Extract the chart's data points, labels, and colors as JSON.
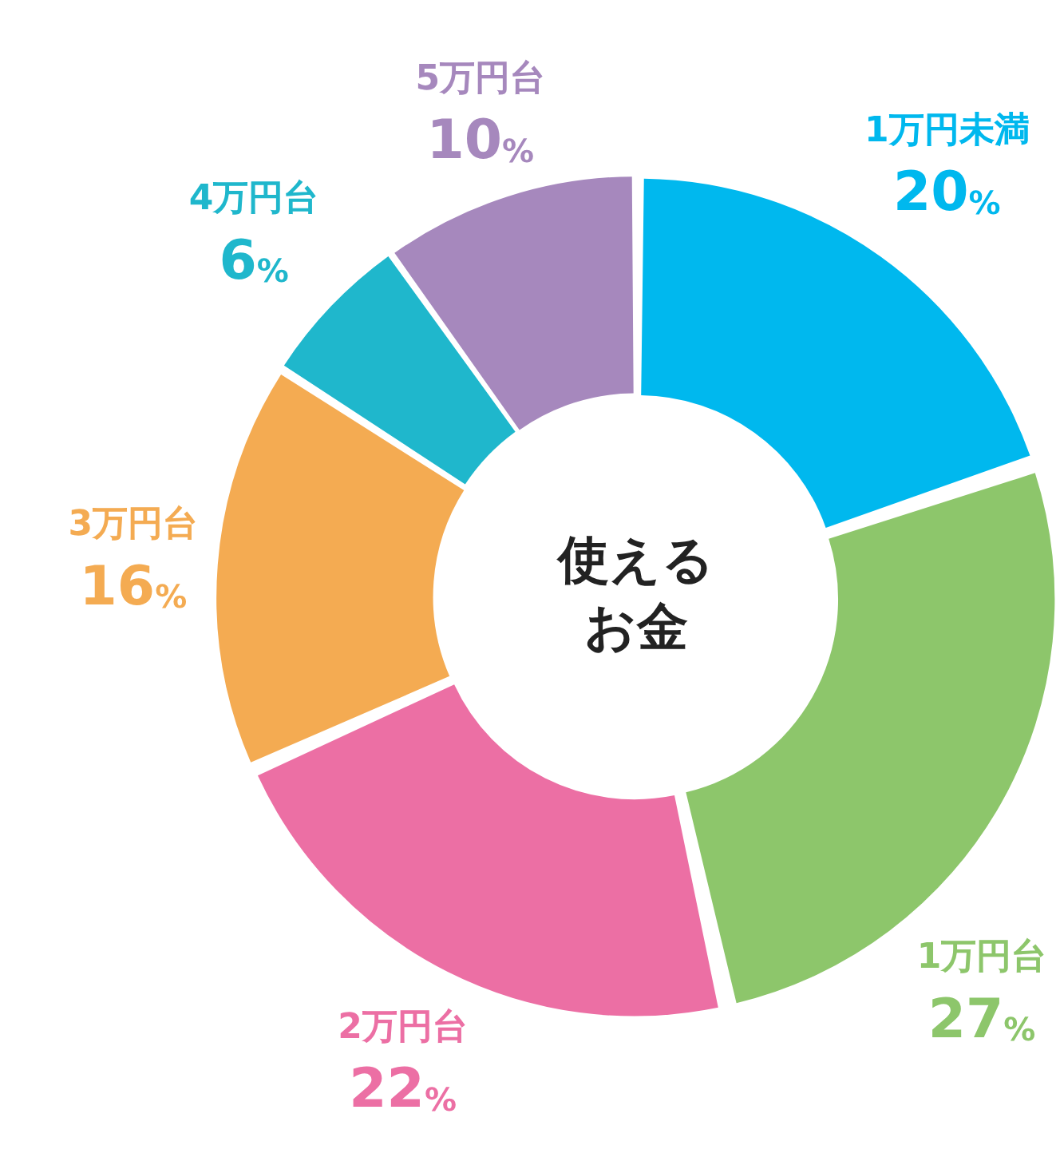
{
  "chart_data": {
    "type": "donut",
    "title": "使えるお金",
    "categories": [
      "1万円未満",
      "1万円台",
      "2万円台",
      "3万円台",
      "4万円台",
      "5万円台"
    ],
    "values": [
      20,
      27,
      22,
      16,
      6,
      10
    ],
    "value_labels": [
      "20%",
      "27%",
      "22%",
      "16%",
      "6%",
      "10%"
    ],
    "colors": [
      "#00b8ee",
      "#8dc66b",
      "#ec6fa4",
      "#f4ab52",
      "#1fb7cc",
      "#a688bd"
    ],
    "legend": false
  }
}
